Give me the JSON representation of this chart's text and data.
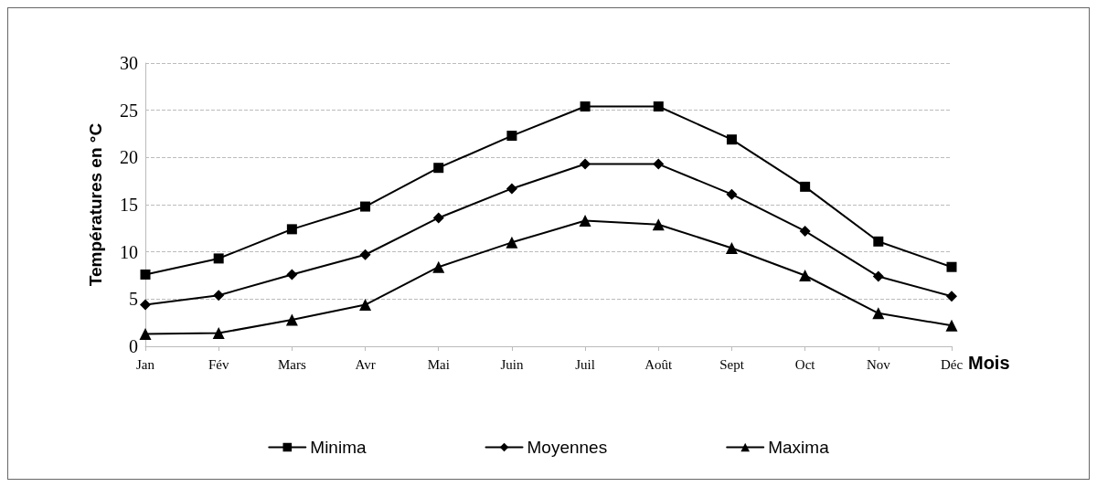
{
  "chart_data": {
    "type": "line",
    "xlabel": "Mois",
    "ylabel": "Températures en °C",
    "categories": [
      "Jan",
      "Fév",
      "Mars",
      "Avr",
      "Mai",
      "Juin",
      "Juil",
      "Août",
      "Sept",
      "Oct",
      "Nov",
      "Déc"
    ],
    "series": [
      {
        "name": "Minima",
        "color": "#000000",
        "marker": "square",
        "values": [
          7.6,
          9.3,
          12.4,
          14.8,
          18.9,
          22.3,
          25.4,
          25.4,
          21.9,
          16.9,
          11.1,
          8.4
        ]
      },
      {
        "name": "Moyennes",
        "color": "#000000",
        "marker": "diamond",
        "values": [
          4.4,
          5.4,
          7.6,
          9.7,
          13.6,
          16.7,
          19.3,
          19.3,
          16.1,
          12.2,
          7.4,
          5.3
        ]
      },
      {
        "name": "Maxima",
        "color": "#000000",
        "marker": "triangle",
        "values": [
          1.3,
          1.4,
          2.8,
          4.4,
          8.4,
          11.0,
          13.3,
          12.9,
          10.4,
          7.5,
          3.5,
          2.2
        ]
      }
    ],
    "ylim": [
      0,
      30
    ],
    "yticks": [
      0,
      5,
      10,
      15,
      20,
      25,
      30
    ],
    "grid": "y",
    "legend": "bottom",
    "line_style": "solid"
  }
}
